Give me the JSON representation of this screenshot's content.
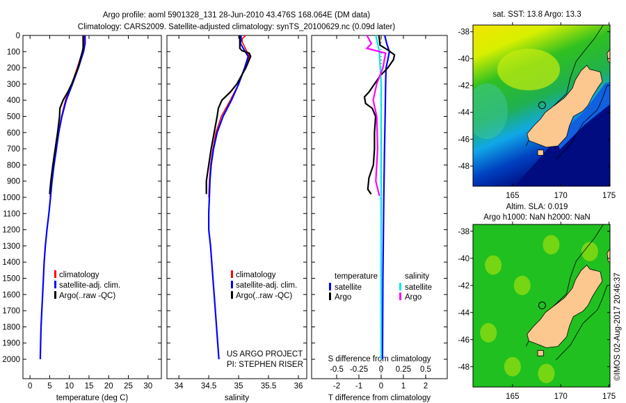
{
  "title": {
    "line1": "Argo profile: aoml 5901328_131 28-Jun-2010 43.476S 168.064E (DM data)",
    "line2": "Climatology: CARS2009. Satellite-adjusted climatology: synTS_20100629.nc (0.09d later)"
  },
  "colors": {
    "climatology": "#ff0000",
    "satellite": "#0000ff",
    "argo": "#000000",
    "sal_satellite": "#00e5ee",
    "sal_argo": "#ff00ff"
  },
  "chart_data": [
    {
      "type": "line",
      "xlabel": "temperature (deg C)",
      "ylabel": "",
      "xlim": [
        -1.8,
        33.4
      ],
      "ylim": [
        2120,
        0
      ],
      "xticks": [
        "0",
        "5",
        "10",
        "15",
        "20",
        "25",
        "30"
      ],
      "xtick_values": [
        0,
        5,
        10,
        15,
        20,
        25,
        30
      ],
      "yticks": [
        "0",
        "100",
        "200",
        "300",
        "400",
        "500",
        "600",
        "700",
        "800",
        "900",
        "1000",
        "1100",
        "1200",
        "1300",
        "1400",
        "1500",
        "1600",
        "1700",
        "1800",
        "1900",
        "2000"
      ],
      "ytick_values": [
        0,
        100,
        200,
        300,
        400,
        500,
        600,
        700,
        800,
        900,
        1000,
        1100,
        1200,
        1300,
        1400,
        1500,
        1600,
        1700,
        1800,
        1900,
        2000
      ],
      "legend": [
        "climatology",
        "satellite-adj. clim.",
        "Argo(..raw -QC)"
      ],
      "legend_placement": "lower-middle",
      "series": [
        {
          "name": "climatology",
          "color": "#ff0000",
          "depth": [
            0,
            50,
            100,
            200,
            300,
            400,
            500,
            600,
            700,
            800,
            900,
            1000
          ],
          "values": [
            13.8,
            13.7,
            13.3,
            12.0,
            10.6,
            9.0,
            8.0,
            7.2,
            6.6,
            6.0,
            5.5,
            5.1
          ]
        },
        {
          "name": "satellite-adj. clim.",
          "color": "#0000ff",
          "depth": [
            0,
            50,
            100,
            200,
            300,
            400,
            500,
            600,
            700,
            800,
            900,
            1000,
            1100,
            1200,
            1300,
            1400,
            1500,
            1600,
            1700,
            1800,
            1900,
            2000
          ],
          "values": [
            14.0,
            14.0,
            13.6,
            12.3,
            10.8,
            9.2,
            8.1,
            7.3,
            6.7,
            6.1,
            5.6,
            5.2,
            4.8,
            4.3,
            3.9,
            3.6,
            3.4,
            3.2,
            3.0,
            2.8,
            2.7,
            2.6
          ]
        },
        {
          "name": "Argo(..raw -QC)",
          "color": "#000000",
          "depth": [
            0,
            80,
            100,
            200,
            300,
            350,
            400,
            450,
            500,
            600,
            700,
            800,
            900,
            950,
            980
          ],
          "values": [
            13.5,
            13.5,
            13.3,
            12.2,
            10.6,
            9.6,
            8.4,
            7.6,
            7.5,
            7.0,
            6.4,
            5.8,
            5.3,
            5.1,
            5.0
          ]
        }
      ]
    },
    {
      "type": "line",
      "xlabel": "salinity",
      "xlim": [
        33.8,
        36.14
      ],
      "ylim": [
        2120,
        0
      ],
      "xticks": [
        "34",
        "34.5",
        "35",
        "35.5",
        "36"
      ],
      "xtick_values": [
        34,
        34.5,
        35,
        35.5,
        36
      ],
      "legend": [
        "climatology",
        "satellite-adj. clim.",
        "Argo(..raw -QC)"
      ],
      "legend_placement": "lower-middle",
      "annotation": [
        "US ARGO PROJECT",
        "PI: STEPHEN RISER"
      ],
      "series": [
        {
          "name": "climatology",
          "color": "#ff0000",
          "depth": [
            0,
            20,
            40,
            70,
            130,
            200,
            300,
            400,
            500,
            600,
            700,
            800,
            900,
            1000
          ],
          "values": [
            35.12,
            35.06,
            35.06,
            35.1,
            35.18,
            35.1,
            35.0,
            34.86,
            34.71,
            34.62,
            34.57,
            34.53,
            34.51,
            34.5
          ]
        },
        {
          "name": "satellite-adj. clim.",
          "color": "#0000ff",
          "depth": [
            0,
            30,
            50,
            130,
            200,
            300,
            400,
            500,
            600,
            700,
            800,
            900,
            1000,
            1100,
            1200,
            1300,
            1400,
            1500,
            1600,
            1700,
            1800,
            1900,
            2000
          ],
          "values": [
            35.04,
            35.04,
            35.03,
            35.16,
            35.1,
            35.0,
            34.88,
            34.74,
            34.64,
            34.58,
            34.54,
            34.52,
            34.51,
            34.5,
            34.5,
            34.53,
            34.55,
            34.57,
            34.59,
            34.61,
            34.63,
            34.65,
            34.67
          ]
        },
        {
          "name": "Argo(..raw -QC)",
          "color": "#000000",
          "depth": [
            0,
            80,
            95,
            110,
            130,
            200,
            300,
            350,
            400,
            450,
            500,
            600,
            700,
            800,
            900,
            980
          ],
          "values": [
            35.02,
            35.02,
            35.06,
            35.18,
            35.2,
            35.12,
            34.97,
            34.86,
            34.72,
            34.66,
            34.64,
            34.59,
            34.54,
            34.5,
            34.46,
            34.46
          ]
        }
      ]
    },
    {
      "type": "line",
      "xlabel": "T difference from climatology",
      "xlabel2": "S difference from climatology",
      "xlim": [
        -3.125,
        2.97
      ],
      "ylim": [
        2120,
        0
      ],
      "xticks": [
        "-2",
        "-1",
        "0",
        "1",
        "2"
      ],
      "xtick_values": [
        -2,
        -1,
        0,
        1,
        2
      ],
      "xticks2": [
        "-0.5",
        "-0.25",
        "0",
        "0.25",
        "0.5"
      ],
      "xtick2_values": [
        -0.5,
        -0.25,
        0,
        0.25,
        0.5
      ],
      "legend_headers": [
        "temperature",
        "salinity"
      ],
      "legend": [
        "satellite",
        "Argo",
        "satellite",
        "Argo"
      ],
      "legend_placement": "lower-middle",
      "series": [
        {
          "name": "temperature satellite",
          "color": "#0000ff",
          "variable": "T",
          "depth": [
            0,
            50,
            100,
            150,
            200,
            300,
            500,
            700,
            1000,
            1500,
            2000
          ],
          "values": [
            0.16,
            0.25,
            0.37,
            0.3,
            0.22,
            0.2,
            0.18,
            0.15,
            0.12,
            0.08,
            0.06
          ]
        },
        {
          "name": "temperature Argo",
          "color": "#000000",
          "variable": "T",
          "depth": [
            0,
            60,
            90,
            120,
            150,
            200,
            250,
            300,
            350,
            380,
            420,
            450,
            500,
            600,
            700,
            800,
            880,
            950,
            980
          ],
          "values": [
            -0.1,
            -0.05,
            0.3,
            0.6,
            0.55,
            0.3,
            -0.05,
            -0.3,
            -0.55,
            -0.75,
            -0.7,
            -0.4,
            -0.25,
            -0.3,
            -0.3,
            -0.35,
            -0.55,
            -0.6,
            -0.45
          ]
        },
        {
          "name": "salinity satellite",
          "color": "#00e5ee",
          "variable": "S",
          "depth": [
            0,
            50,
            100,
            200,
            300,
            500,
            700,
            1000,
            1500,
            2000
          ],
          "values": [
            -0.06,
            -0.04,
            -0.02,
            -0.01,
            0.0,
            0.0,
            0.0,
            0.0,
            0.0,
            0.0
          ]
        },
        {
          "name": "salinity Argo",
          "color": "#ff00ff",
          "variable": "S",
          "depth": [
            0,
            50,
            80,
            110,
            200,
            300,
            400,
            500,
            700,
            800,
            900,
            990
          ],
          "values": [
            -0.16,
            -0.11,
            -0.16,
            0.05,
            0.02,
            -0.05,
            -0.09,
            -0.05,
            -0.04,
            -0.05,
            -0.06,
            -0.02
          ]
        }
      ]
    }
  ],
  "maps": [
    {
      "title": "sat. SST: 13.8 Argo: 13.3",
      "xticks": [
        "165",
        "170",
        "175"
      ],
      "xtick_values": [
        165,
        170,
        175
      ],
      "yticks": [
        "-38",
        "-40",
        "-42",
        "-44",
        "-46",
        "-48"
      ],
      "ytick_values": [
        -38,
        -40,
        -42,
        -44,
        -46,
        -48
      ],
      "lon_range": [
        160.9,
        175.1
      ],
      "lat_range": [
        -49.5,
        -37.5
      ],
      "argo_position": [
        168.064,
        -43.476
      ]
    },
    {
      "title1": "Altim. SLA: 0.019",
      "title2": "Argo h1000: NaN h2000: NaN",
      "xticks": [
        "165",
        "170",
        "175"
      ],
      "xtick_values": [
        165,
        170,
        175
      ],
      "yticks": [
        "-38",
        "-40",
        "-42",
        "-44",
        "-46",
        "-48"
      ],
      "ytick_values": [
        -38,
        -40,
        -42,
        -44,
        -46,
        -48
      ],
      "lon_range": [
        160.9,
        175.1
      ],
      "lat_range": [
        -49.5,
        -37.5
      ],
      "argo_position": [
        168.064,
        -43.476
      ]
    }
  ],
  "footer_stamp": "©IMOS 02-Aug-2017 20:46:37"
}
